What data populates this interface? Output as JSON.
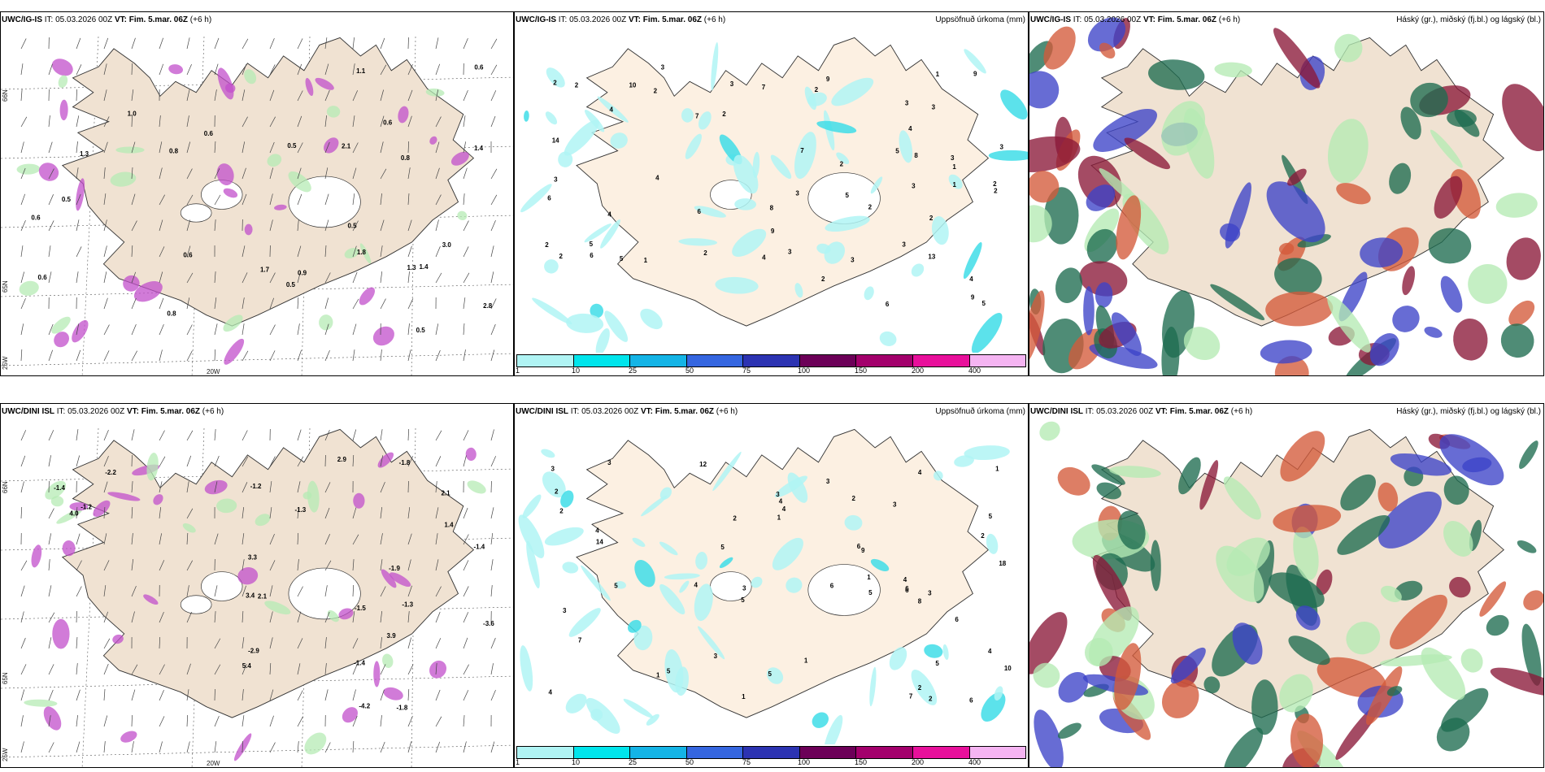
{
  "rows": [
    {
      "model": "UWC/IG-IS",
      "it_label": "IT:",
      "it_value": "05.03.2026 00Z",
      "vt_label": "VT:",
      "vt_value": "Fim. 5.mar. 06Z",
      "lead": "(+6 h)",
      "precip_title": "Uppsöfnuð úrkoma (mm)",
      "cloud_title": "Háský (gr.), miðský (fj.bl.) og lágský (bl.)",
      "lat_labels": [
        "66N",
        "65N",
        "25W"
      ],
      "lon_label": "20W",
      "precip_numbers": [
        "2",
        "2",
        "2",
        "3",
        "2",
        "2",
        "8",
        "8",
        "2",
        "3",
        "5",
        "2",
        "3",
        "2",
        "2",
        "1",
        "5",
        "4",
        "3",
        "3",
        "5",
        "3",
        "3",
        "4",
        "3",
        "3",
        "3",
        "5",
        "3",
        "13",
        "14",
        "5",
        "2",
        "4",
        "6",
        "7",
        "6",
        "7",
        "9",
        "1",
        "4",
        "6",
        "9",
        "9",
        "4",
        "10",
        "2",
        "9",
        "7",
        "4",
        "6",
        "2",
        "3",
        "1",
        "2",
        "2",
        "1"
      ],
      "wind_numbers": [
        "0.5",
        "0.6",
        "1.8",
        "1.4",
        "3.0",
        "1.1",
        "1.3",
        "1.7",
        "0.9",
        "2.8",
        "1.0",
        "2.1",
        "0.8",
        "0.6",
        "0.8",
        "0.6",
        "0.8",
        "0.5",
        "0.6",
        "0.6",
        "0.5",
        "0.5",
        "1.3",
        "1.4",
        "0.5",
        "0.6"
      ]
    },
    {
      "model": "UWC/DINI ISL",
      "it_label": "IT:",
      "it_value": "05.03.2026 00Z",
      "vt_label": "VT:",
      "vt_value": "Fim. 5.mar. 06Z",
      "lead": "(+6 h)",
      "precip_title": "Uppsöfnuð úrkoma (mm)",
      "cloud_title": "Háský (gr.), miðský (fj.bl.) og lágský (bl.)",
      "lat_labels": [
        "66N",
        "65N",
        "25W"
      ],
      "lon_label": "20W",
      "precip_numbers": [
        "1",
        "3",
        "3",
        "3",
        "5",
        "4",
        "10",
        "3",
        "2",
        "6",
        "4",
        "5",
        "7",
        "6",
        "6",
        "4",
        "5",
        "6",
        "4",
        "6",
        "1",
        "2",
        "5",
        "4",
        "3",
        "5",
        "7",
        "9",
        "14",
        "12",
        "18",
        "2",
        "4",
        "8",
        "5",
        "5",
        "4",
        "1",
        "2",
        "3",
        "5",
        "3",
        "6",
        "3",
        "2",
        "1",
        "4",
        "2",
        "3",
        "1",
        "1",
        "2"
      ],
      "wind_numbers": [
        "-1.4",
        "-1.5",
        "-1.4",
        "3.4",
        "-1.4",
        "-2.2",
        "2.1",
        "4.0",
        "3.9",
        "2.1",
        "-1.2",
        "-1.8",
        "2.9",
        "3.3",
        "-1.3",
        "-4.2",
        "-1.2",
        "5.4",
        "-3.6",
        "-2.9",
        "-1.8",
        "-1.9",
        "-1.3",
        "1.4"
      ]
    }
  ],
  "precip_legend": {
    "labels": [
      "1",
      "10",
      "25",
      "50",
      "75",
      "100",
      "150",
      "200",
      "400"
    ],
    "colors": [
      "#b0f4f4",
      "#00e5ec",
      "#14b4e6",
      "#3566e0",
      "#2c33b2",
      "#6c0058",
      "#a3006c",
      "#e8109b",
      "#f5b4f2"
    ]
  },
  "colors": {
    "land": "#f0e2d2",
    "land_light": "#fcf0e2",
    "precip_light": "#b0f4f4",
    "precip_mid": "#40dde8",
    "purple": "#c24fcb",
    "purple_light": "#e6a6ec",
    "green_light": "#b5ebb4",
    "high_cloud": "#1e6b50",
    "mid_cloud": "#8a1838",
    "low_cloud": "#3c42c8",
    "orange_cloud": "#d45a3a"
  }
}
